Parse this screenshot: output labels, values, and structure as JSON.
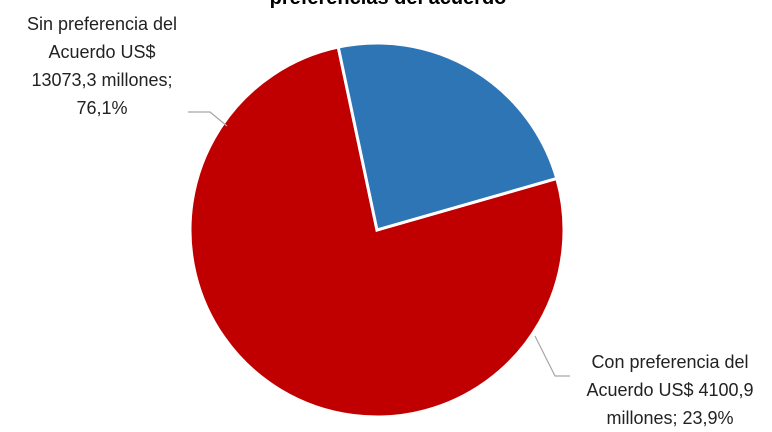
{
  "chart_data": {
    "type": "pie",
    "title": "preferencias del acuerdo",
    "slices": [
      {
        "label_lines": [
          "Sin preferencia del",
          "Acuerdo US$",
          "13073,3 millones;",
          "76,1%"
        ],
        "value": 13073.3,
        "percent": 76.1,
        "color": "#c00000"
      },
      {
        "label_lines": [
          "Con preferencia del",
          "Acuerdo US$ 4100,9",
          "millones; 23,9%"
        ],
        "value": 4100.9,
        "percent": 23.9,
        "color": "#2e75b6"
      }
    ],
    "legend": "none"
  }
}
